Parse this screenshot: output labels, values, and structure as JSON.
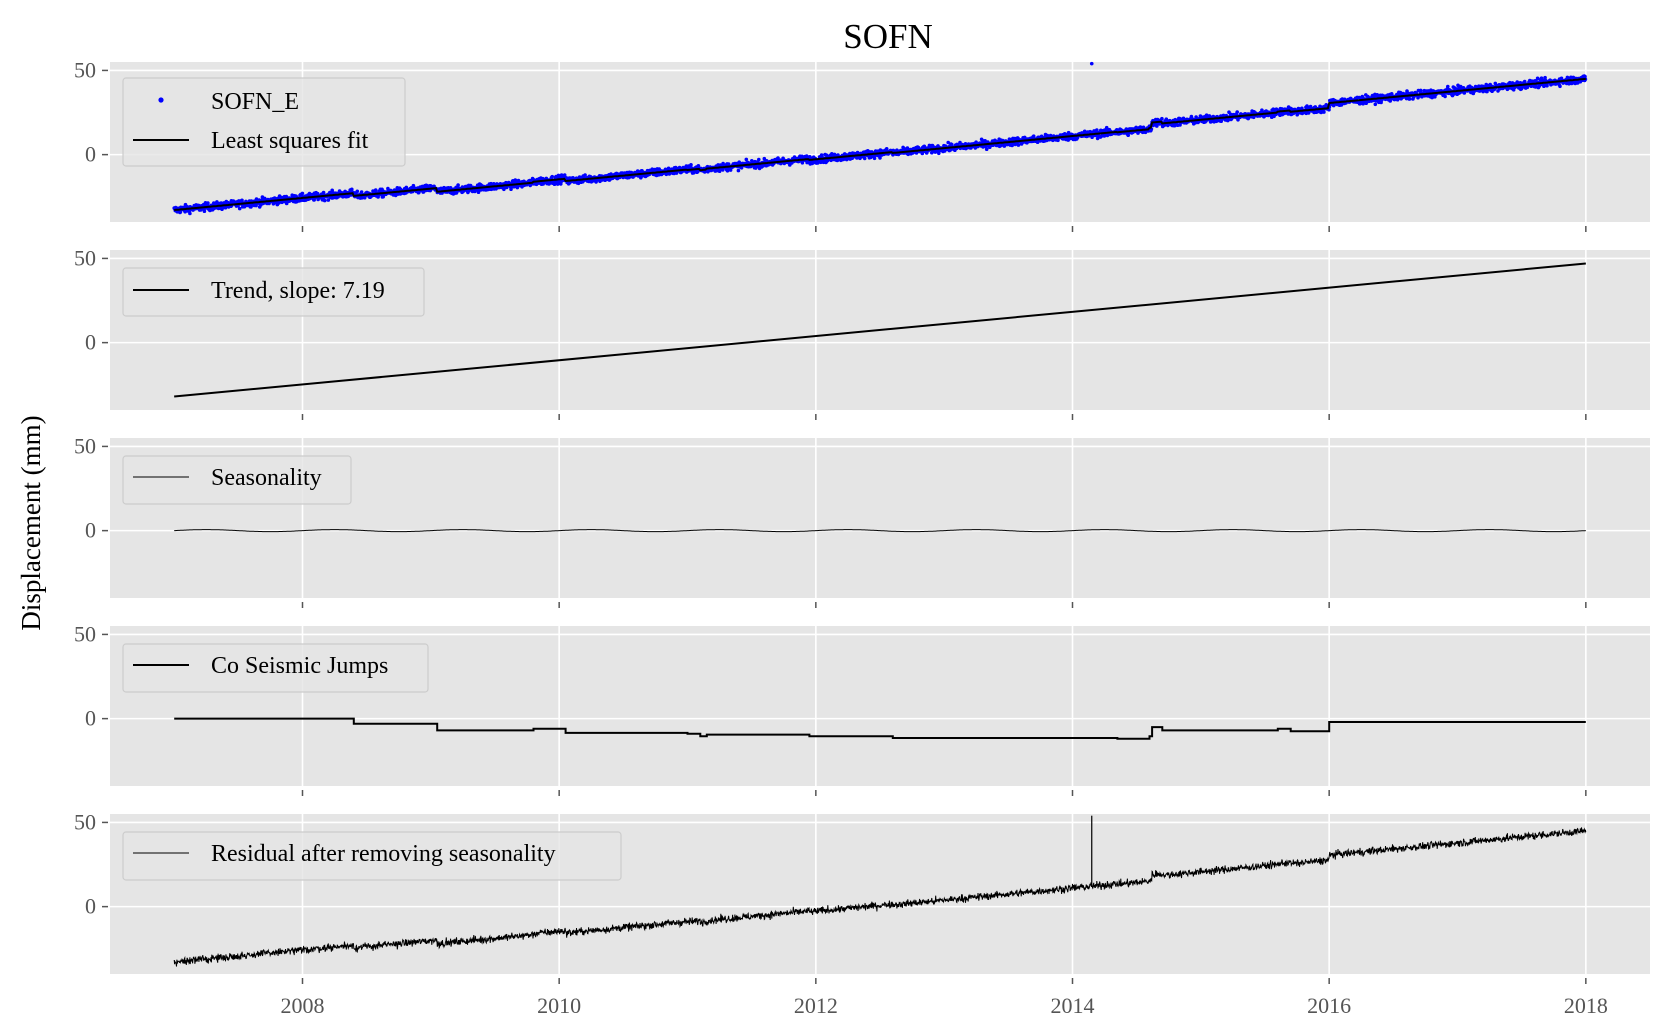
{
  "figure": {
    "title": "SOFN",
    "ylabel": "Displacement (mm)"
  },
  "colors": {
    "panel_bg": "#e5e5e5",
    "grid": "#ffffff",
    "data_points": "#0000ff",
    "fit_line": "#000000",
    "tick_text": "#555555"
  },
  "chart_data": [
    {
      "id": "observed",
      "type": "scatter",
      "title": "SOFN",
      "legend": [
        "SOFN_E",
        "Least squares fit"
      ],
      "xlim": [
        2006.5,
        2018.5
      ],
      "ylim": [
        -40,
        55
      ],
      "xticks": [
        2008,
        2010,
        2012,
        2014,
        2016,
        2018
      ],
      "yticks": [
        0,
        50
      ],
      "x_range": [
        2007.0,
        2018.0
      ],
      "fit_y_start": -32,
      "fit_y_end": 45,
      "outlier": {
        "x": 2014.15,
        "y": 54
      }
    },
    {
      "id": "trend",
      "type": "line",
      "legend": [
        "Trend, slope: 7.19"
      ],
      "slope": 7.19,
      "x": [
        2007.0,
        2018.0
      ],
      "y": [
        -32,
        47
      ],
      "ylim": [
        -40,
        55
      ],
      "yticks": [
        0,
        50
      ]
    },
    {
      "id": "seasonality",
      "type": "line",
      "legend": [
        "Seasonality"
      ],
      "amplitude": 0.6,
      "period_years": 1,
      "ylim": [
        -40,
        55
      ],
      "yticks": [
        0,
        50
      ]
    },
    {
      "id": "jumps",
      "type": "line",
      "legend": [
        "Co Seismic Jumps"
      ],
      "ylim": [
        -40,
        55
      ],
      "yticks": [
        0,
        50
      ],
      "steps": [
        [
          2007.0,
          0
        ],
        [
          2008.4,
          -3
        ],
        [
          2009.05,
          -7
        ],
        [
          2009.8,
          -6
        ],
        [
          2010.05,
          -8.5
        ],
        [
          2011.0,
          -9
        ],
        [
          2011.1,
          -10.5
        ],
        [
          2011.15,
          -9.5
        ],
        [
          2011.95,
          -10.5
        ],
        [
          2012.6,
          -11.5
        ],
        [
          2014.35,
          -12
        ],
        [
          2014.6,
          -10.5
        ],
        [
          2014.62,
          -5
        ],
        [
          2014.7,
          -7
        ],
        [
          2015.6,
          -6
        ],
        [
          2015.7,
          -7.5
        ],
        [
          2016.0,
          -2
        ],
        [
          2018.0,
          -2
        ]
      ]
    },
    {
      "id": "residual",
      "type": "line",
      "legend": [
        "Residual after removing seasonality"
      ],
      "ylim": [
        -40,
        55
      ],
      "yticks": [
        0,
        50
      ],
      "xticks": [
        2008,
        2010,
        2012,
        2014,
        2016,
        2018
      ],
      "spike": {
        "x": 2014.15,
        "y": 54
      },
      "y_start": -32,
      "y_end": 45
    }
  ]
}
